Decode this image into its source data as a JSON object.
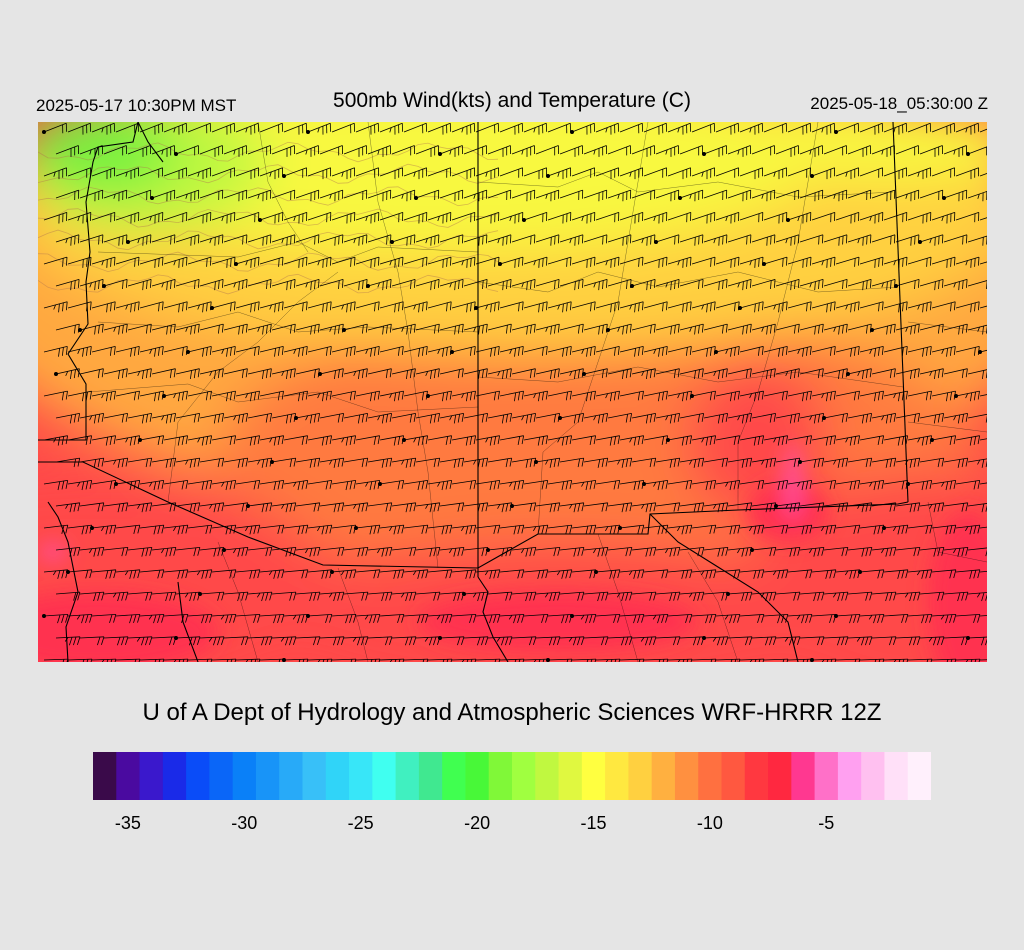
{
  "header": {
    "local_time": "2025-05-17 10:30PM MST",
    "title": "500mb Wind(kts) and Temperature (C)",
    "utc_time": "2025-05-18_05:30:00 Z"
  },
  "credit": "U of A Dept of Hydrology and Atmospheric Sciences WRF-HRRR 12Z",
  "colorbar": {
    "colors": [
      "#3a0a4a",
      "#4a0aa0",
      "#3a18cc",
      "#1a2ae8",
      "#0a4cf8",
      "#0a66f8",
      "#0a80f8",
      "#1894f8",
      "#28aaf8",
      "#38c0f8",
      "#30d4f8",
      "#38e6f8",
      "#40fff0",
      "#40f0c0",
      "#40e890",
      "#40ff50",
      "#48f838",
      "#80f838",
      "#a0ff40",
      "#c0f840",
      "#e0f840",
      "#ffff40",
      "#ffe840",
      "#ffd040",
      "#ffb040",
      "#ff9040",
      "#ff7040",
      "#ff5840",
      "#ff3840",
      "#ff2840",
      "#ff3890",
      "#ff70c8",
      "#ffa0f0",
      "#ffc0f0",
      "#ffe0f8",
      "#fff0fc"
    ],
    "ticks": [
      {
        "label": "-35",
        "value": -35
      },
      {
        "label": "-30",
        "value": -30
      },
      {
        "label": "-25",
        "value": -25
      },
      {
        "label": "-20",
        "value": -20
      },
      {
        "label": "-15",
        "value": -15
      },
      {
        "label": "-10",
        "value": -10
      },
      {
        "label": "-5",
        "value": -5
      }
    ],
    "min": -36.5,
    "max": -0.5
  },
  "map": {
    "palette": {
      "green": "#78f040",
      "lime": "#c0f840",
      "yellow": "#f8f840",
      "yellow_orange": "#ffd040",
      "orange": "#ffa840",
      "deep_orange": "#ff7a40",
      "red": "#ff4a48",
      "crimson": "#ff3050",
      "magenta": "#ff50a0"
    }
  }
}
